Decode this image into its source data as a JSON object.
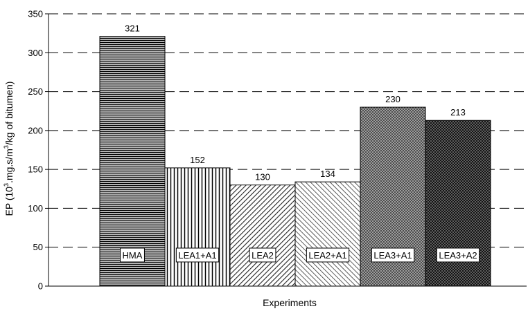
{
  "chart_data": {
    "type": "bar",
    "categories": [
      "HMA",
      "LEA1+A1",
      "LEA2",
      "LEA2+A1",
      "LEA3+A1",
      "LEA3+A2"
    ],
    "values": [
      321,
      152,
      130,
      134,
      230,
      213
    ],
    "value_labels": [
      "321",
      "152",
      "130",
      "134",
      "230",
      "213"
    ],
    "xlabel": "Experiments",
    "ylabel": {
      "prefix": "EP (10",
      "sup1": "3",
      "middle": ".mg.s/m",
      "sup2": "3",
      "suffix": "/kg of bitumen)"
    },
    "ylim": [
      0,
      350
    ],
    "yticks": [
      "0",
      "50",
      "100",
      "150",
      "200",
      "250",
      "300",
      "350"
    ],
    "grid": "horizontal dashed",
    "legend": "none",
    "patterns": [
      "horizontal-lines",
      "vertical-lines",
      "diagonal-lines",
      "diagonal-lines-light",
      "crosshatch",
      "crosshatch-dense"
    ]
  }
}
